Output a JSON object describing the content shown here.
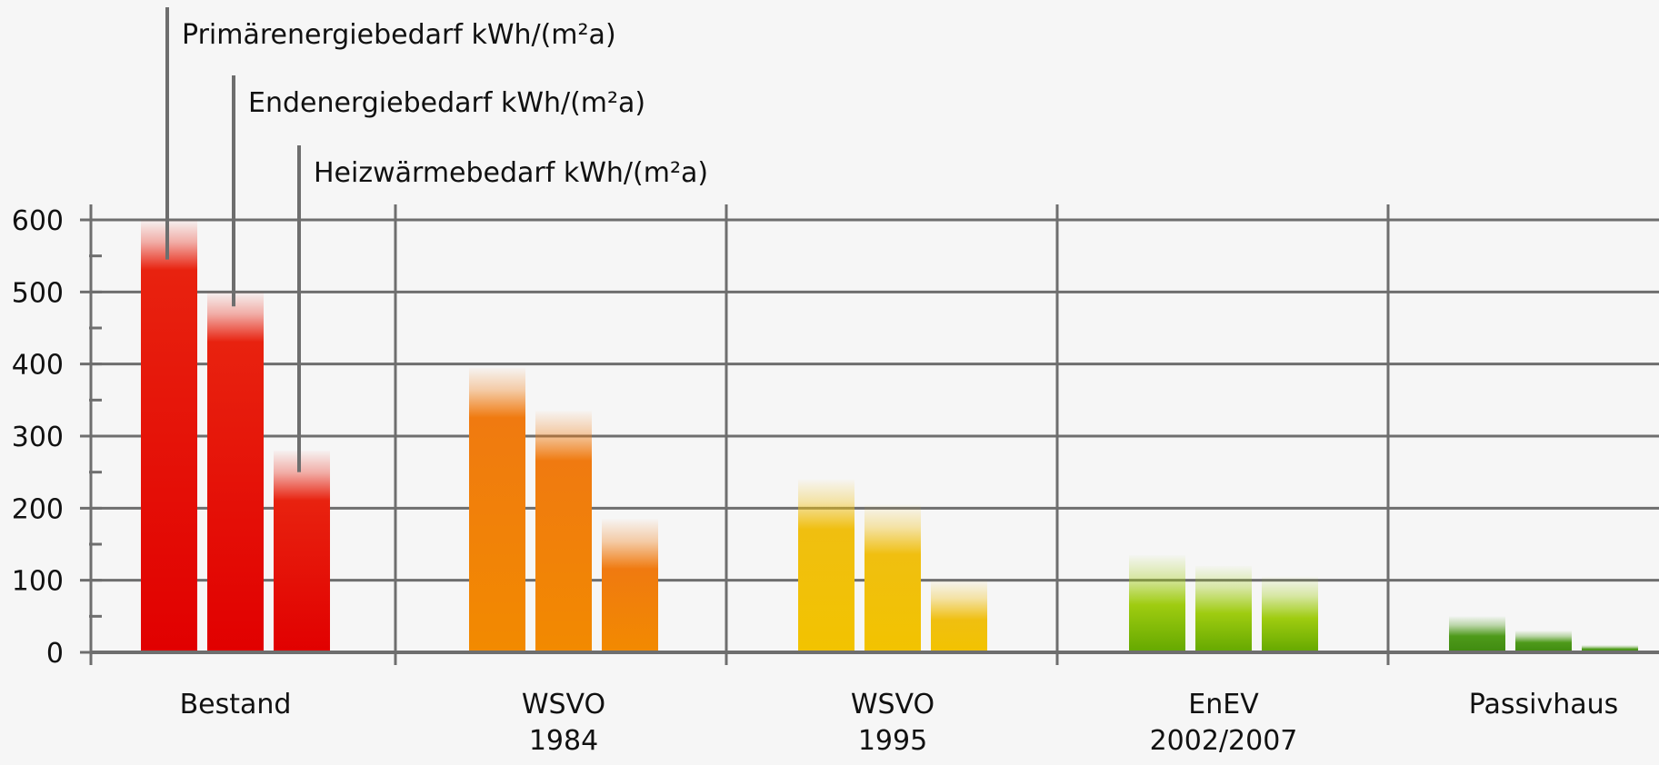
{
  "chart_data": {
    "type": "bar",
    "categories": [
      [
        "Bestand"
      ],
      [
        "WSVO",
        "1984"
      ],
      [
        "WSVO",
        "1995"
      ],
      [
        "EnEV",
        "2002/2007"
      ],
      [
        "Passivhaus"
      ]
    ],
    "series": [
      {
        "name": "Primärenergiebedarf kWh/(m²a)",
        "values": [
          600,
          395,
          240,
          135,
          50
        ]
      },
      {
        "name": "Endenergiebedarf kWh/(m²a)",
        "values": [
          500,
          335,
          205,
          120,
          30
        ]
      },
      {
        "name": "Heizwärmebedarf kWh/(m²a)",
        "values": [
          280,
          185,
          100,
          105,
          10
        ]
      }
    ],
    "ylim": [
      0,
      600
    ],
    "yticks": [
      0,
      100,
      200,
      300,
      400,
      500,
      600
    ],
    "grid": true,
    "category_colors": [
      {
        "top": "#e8220f",
        "bottom": "#e10000"
      },
      {
        "top": "#f07a10",
        "bottom": "#f28a00"
      },
      {
        "top": "#f0bf10",
        "bottom": "#f2c300"
      },
      {
        "top": "#9fcc10",
        "bottom": "#64a800"
      },
      {
        "top": "#4e9a1a",
        "bottom": "#3f8a10"
      }
    ],
    "axis_color": "#6e6e6e"
  }
}
